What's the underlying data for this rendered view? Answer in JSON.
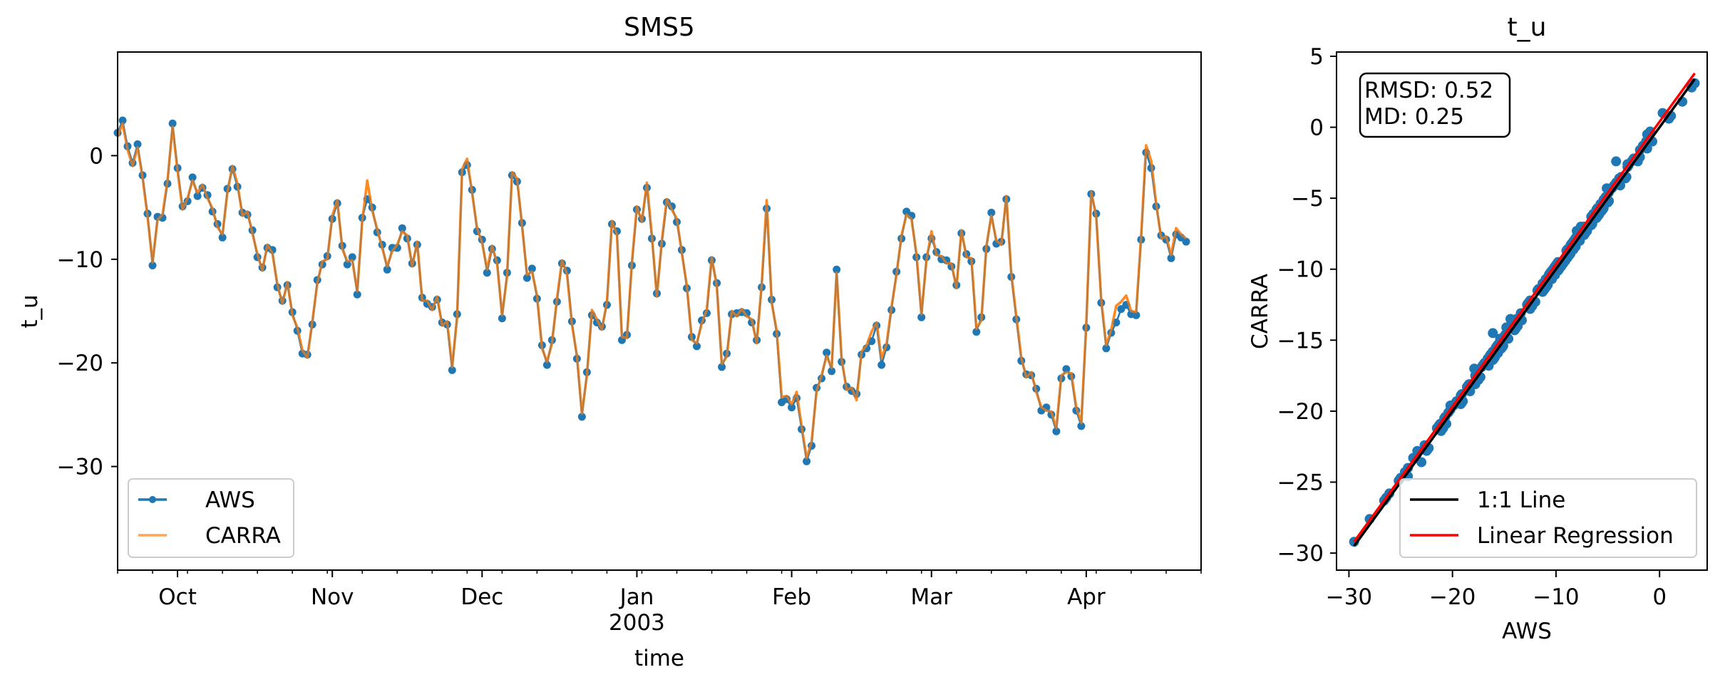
{
  "chart_data": [
    {
      "type": "line",
      "title": "SMS5",
      "xlabel": "time",
      "ylabel": "t_u",
      "ylim": [
        -40,
        10
      ],
      "yticks": [
        0,
        -10,
        -20,
        -30
      ],
      "x_start": "2002-09-19",
      "x_end": "2003-04-24",
      "xticks": [
        {
          "date": "2002-10-01",
          "label": "Oct"
        },
        {
          "date": "2002-11-01",
          "label": "Nov"
        },
        {
          "date": "2002-12-01",
          "label": "Dec"
        },
        {
          "date": "2003-01-01",
          "label": "Jan",
          "sublabel": "2003"
        },
        {
          "date": "2003-02-01",
          "label": "Feb"
        },
        {
          "date": "2003-03-01",
          "label": "Mar"
        },
        {
          "date": "2003-04-01",
          "label": "Apr"
        }
      ],
      "legend": "lower-left",
      "grid": false,
      "series": [
        {
          "name": "AWS",
          "color": "#1f77b4",
          "marker": "circle",
          "values": [
            2.2,
            3.4,
            0.9,
            -0.7,
            1.1,
            -1.9,
            -5.6,
            -10.6,
            -5.9,
            -6.0,
            -2.7,
            3.1,
            -1.2,
            -4.9,
            -4.4,
            -2.1,
            -3.9,
            -3.1,
            -3.8,
            -5.4,
            -6.6,
            -7.9,
            -3.2,
            -1.3,
            -3.0,
            -5.5,
            -5.7,
            -7.2,
            -9.8,
            -10.8,
            -8.9,
            -9.1,
            -12.7,
            -14.0,
            -12.5,
            -15.1,
            -16.9,
            -19.1,
            -19.2,
            -16.3,
            -12.0,
            -10.5,
            -9.7,
            -6.1,
            -4.6,
            -8.7,
            -10.5,
            -9.8,
            -13.4,
            -6.0,
            -4.2,
            -5.0,
            -7.4,
            -8.6,
            -11.0,
            -8.9,
            -8.9,
            -7.0,
            -8.0,
            -10.4,
            -8.6,
            -13.7,
            -14.3,
            -14.6,
            -13.9,
            -16.1,
            -16.3,
            -20.7,
            -15.3,
            -1.6,
            -0.9,
            -3.3,
            -7.3,
            -8.1,
            -11.3,
            -9.0,
            -10.1,
            -15.7,
            -11.3,
            -1.9,
            -2.5,
            -6.5,
            -11.8,
            -10.9,
            -13.8,
            -18.3,
            -20.2,
            -17.8,
            -14.1,
            -10.4,
            -11.1,
            -16.0,
            -19.6,
            -25.2,
            -20.9,
            -15.4,
            -16.1,
            -16.5,
            -14.4,
            -6.6,
            -7.3,
            -17.8,
            -17.3,
            -10.6,
            -5.2,
            -6.1,
            -3.1,
            -8.0,
            -13.3,
            -8.5,
            -4.5,
            -4.9,
            -6.4,
            -9.1,
            -12.8,
            -17.5,
            -18.4,
            -15.9,
            -15.2,
            -10.1,
            -12.3,
            -20.4,
            -19.1,
            -15.3,
            -15.2,
            -15.1,
            -15.2,
            -16.1,
            -17.8,
            -12.7,
            -5.1,
            -13.9,
            -17.2,
            -23.8,
            -23.5,
            -24.3,
            -23.4,
            -26.4,
            -29.5,
            -28.0,
            -22.4,
            -21.5,
            -19.0,
            -20.8,
            -11.0,
            -19.9,
            -22.3,
            -22.7,
            -23.0,
            -19.2,
            -18.6,
            -17.9,
            -16.4,
            -20.2,
            -18.5,
            -14.9,
            -11.2,
            -8.0,
            -5.4,
            -5.8,
            -9.8,
            -15.6,
            -9.8,
            -8.0,
            -9.3,
            -10.0,
            -10.1,
            -10.7,
            -12.5,
            -7.5,
            -9.5,
            -10.2,
            -17.0,
            -15.6,
            -9.0,
            -5.5,
            -8.5,
            -8.3,
            -4.2,
            -11.7,
            -15.8,
            -19.8,
            -21.1,
            -21.2,
            -22.5,
            -24.6,
            -24.3,
            -25.0,
            -26.6,
            -21.5,
            -20.6,
            -21.3,
            -24.6,
            -26.1,
            -16.6,
            -3.7,
            -5.6,
            -14.2,
            -18.6,
            -17.1,
            -16.1,
            -14.8,
            -14.4,
            -15.3,
            -15.4,
            -8.1,
            0.3,
            -1.2,
            -4.9,
            -7.7,
            -8.1,
            -9.9,
            -7.6,
            -7.9,
            -8.3
          ]
        },
        {
          "name": "CARRA",
          "color": "#ff7f0e",
          "values": [
            1.8,
            3.1,
            0.6,
            -1.0,
            0.8,
            -2.1,
            -5.9,
            -10.3,
            -6.2,
            -5.7,
            -2.4,
            2.8,
            -1.5,
            -5.2,
            -4.1,
            -2.4,
            -3.6,
            -2.8,
            -4.1,
            -5.1,
            -6.9,
            -7.6,
            -3.5,
            -1.0,
            -2.7,
            -5.8,
            -5.4,
            -7.5,
            -9.5,
            -11.1,
            -8.6,
            -9.4,
            -12.4,
            -14.3,
            -12.2,
            -15.4,
            -16.6,
            -18.8,
            -19.5,
            -16.0,
            -12.3,
            -10.2,
            -10.0,
            -5.8,
            -4.3,
            -9.0,
            -10.2,
            -10.1,
            -13.1,
            -6.3,
            -2.4,
            -5.3,
            -7.1,
            -8.9,
            -10.7,
            -9.2,
            -8.6,
            -7.3,
            -7.7,
            -10.7,
            -8.3,
            -14.0,
            -14.0,
            -14.9,
            -13.6,
            -16.4,
            -16.0,
            -20.4,
            -15.6,
            -1.3,
            -0.3,
            -3.6,
            -7.0,
            -8.4,
            -11.0,
            -8.7,
            -10.4,
            -15.4,
            -11.6,
            -1.6,
            -2.2,
            -6.8,
            -11.5,
            -11.2,
            -13.5,
            -18.6,
            -19.9,
            -18.1,
            -13.8,
            -10.1,
            -11.4,
            -16.3,
            -19.3,
            -24.9,
            -21.2,
            -14.9,
            -15.8,
            -16.8,
            -14.1,
            -6.3,
            -7.6,
            -17.5,
            -17.6,
            -10.3,
            -4.9,
            -6.4,
            -2.6,
            -7.7,
            -13.6,
            -8.2,
            -4.2,
            -5.2,
            -6.1,
            -9.4,
            -12.5,
            -17.8,
            -18.1,
            -16.2,
            -14.9,
            -9.8,
            -12.6,
            -20.1,
            -19.4,
            -15.0,
            -15.5,
            -14.8,
            -15.5,
            -15.8,
            -18.1,
            -12.4,
            -4.3,
            -14.2,
            -16.9,
            -23.3,
            -23.2,
            -24.0,
            -22.8,
            -26.1,
            -29.2,
            -27.6,
            -22.7,
            -21.2,
            -19.3,
            -20.5,
            -11.3,
            -19.6,
            -22.6,
            -22.4,
            -23.6,
            -18.9,
            -18.3,
            -17.0,
            -16.1,
            -19.6,
            -18.2,
            -14.6,
            -11.5,
            -7.7,
            -5.7,
            -6.1,
            -9.5,
            -15.3,
            -10.1,
            -7.3,
            -9.6,
            -9.7,
            -10.4,
            -10.4,
            -12.8,
            -7.2,
            -9.8,
            -9.9,
            -16.7,
            -15.9,
            -8.7,
            -5.8,
            -8.2,
            -8.6,
            -3.9,
            -11.4,
            -15.5,
            -19.5,
            -21.4,
            -20.9,
            -22.8,
            -24.3,
            -24.6,
            -24.7,
            -26.3,
            -21.2,
            -20.9,
            -21.0,
            -24.3,
            -25.8,
            -16.3,
            -3.5,
            -5.9,
            -13.9,
            -18.3,
            -16.8,
            -14.5,
            -14.1,
            -13.5,
            -15.0,
            -15.1,
            -7.8,
            1.0,
            -0.5,
            -4.6,
            -8.0,
            -7.8,
            -9.6,
            -7.0,
            -7.6,
            -8.0
          ]
        }
      ]
    },
    {
      "type": "scatter",
      "title": "t_u",
      "xlabel": "AWS",
      "ylabel": "CARRA",
      "xlim": [
        -31.2,
        4.6
      ],
      "ylim": [
        -31.2,
        5.3
      ],
      "xticks": [
        -30,
        -20,
        -10,
        0
      ],
      "yticks": [
        5,
        0,
        -5,
        -10,
        -15,
        -20,
        -25,
        -30
      ],
      "grid": false,
      "legend": "lower-right",
      "annotation": {
        "lines": [
          "RMSD: 0.52",
          "MD: 0.25"
        ]
      },
      "lines": [
        {
          "name": "1:1 Line",
          "color": "#000000",
          "x": [
            -29.5,
            3.4
          ],
          "y": [
            -29.5,
            3.4
          ]
        },
        {
          "name": "Linear Regression",
          "color": "#ff0000",
          "x": [
            -29.5,
            3.4
          ],
          "y": [
            -29.2,
            3.8
          ]
        }
      ],
      "points_from_series": true,
      "point_color": "#1f77b4"
    }
  ]
}
